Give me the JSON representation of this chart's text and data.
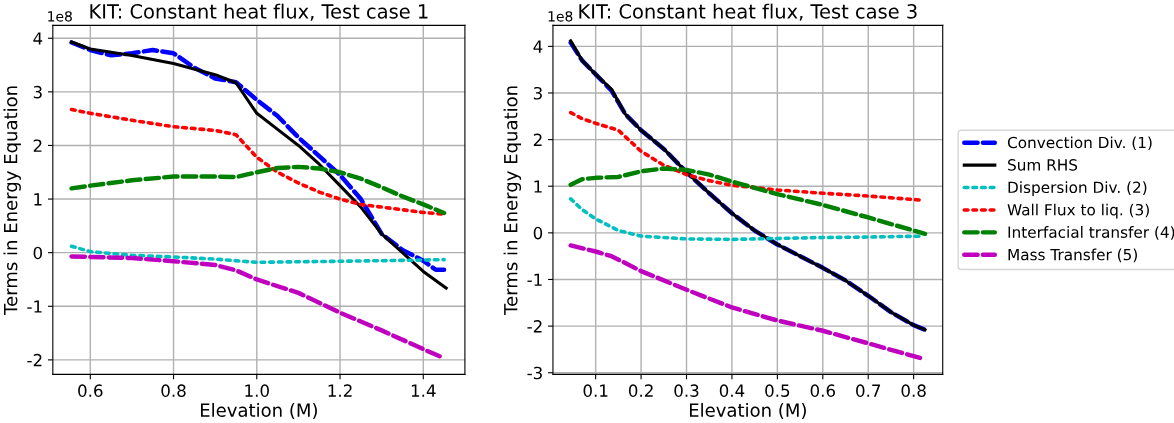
{
  "chart_data": [
    {
      "type": "line",
      "title": "KIT: Constant heat flux, Test case 1",
      "xlabel": "Elevation (M)",
      "ylabel": "Terms in Energy Equation",
      "annotations": [
        "1e8"
      ],
      "xlim": [
        0.51,
        1.5
      ],
      "xticks": [
        {
          "value": 0.6,
          "label": "0.6"
        },
        {
          "value": 0.8,
          "label": "0.8"
        },
        {
          "value": 1.0,
          "label": "1.0"
        },
        {
          "value": 1.2,
          "label": "1.2"
        },
        {
          "value": 1.4,
          "label": "1.4"
        }
      ],
      "ylim": [
        -2.27,
        4.24
      ],
      "yticks": [
        -2,
        -1,
        0,
        1,
        2,
        3,
        4
      ],
      "grid": true,
      "series": [
        {
          "color": "#0000ff",
          "line_style": "dashed",
          "x": [
            0.555,
            0.6,
            0.65,
            0.7,
            0.75,
            0.8,
            0.85,
            0.9,
            0.95,
            1.0,
            1.05,
            1.1,
            1.15,
            1.2,
            1.25,
            1.3,
            1.35,
            1.4,
            1.43,
            1.45
          ],
          "values": [
            3.92,
            3.78,
            3.68,
            3.72,
            3.78,
            3.72,
            3.45,
            3.25,
            3.18,
            2.85,
            2.55,
            2.15,
            1.8,
            1.45,
            1.0,
            0.35,
            0.05,
            -0.15,
            -0.32,
            -0.32
          ]
        },
        {
          "color": "#000000",
          "line_style": "solid",
          "x": [
            0.555,
            0.6,
            0.7,
            0.8,
            0.9,
            0.95,
            1.0,
            1.05,
            1.1,
            1.15,
            1.2,
            1.25,
            1.3,
            1.35,
            1.4,
            1.455
          ],
          "values": [
            3.93,
            3.8,
            3.68,
            3.53,
            3.32,
            3.17,
            2.6,
            2.3,
            2.0,
            1.65,
            1.25,
            0.85,
            0.35,
            0.0,
            -0.35,
            -0.66
          ]
        },
        {
          "color": "#00bfbf",
          "line_style": "dotted",
          "x": [
            0.555,
            0.6,
            0.7,
            0.8,
            0.9,
            1.0,
            1.1,
            1.2,
            1.3,
            1.45
          ],
          "values": [
            0.12,
            0.02,
            -0.05,
            -0.08,
            -0.12,
            -0.18,
            -0.17,
            -0.16,
            -0.15,
            -0.13
          ]
        },
        {
          "color": "#ff0000",
          "line_style": "dotted",
          "x": [
            0.555,
            0.6,
            0.7,
            0.8,
            0.9,
            0.95,
            1.0,
            1.05,
            1.1,
            1.15,
            1.2,
            1.25,
            1.3,
            1.35,
            1.4,
            1.45
          ],
          "values": [
            2.67,
            2.6,
            2.47,
            2.35,
            2.28,
            2.2,
            1.78,
            1.5,
            1.3,
            1.13,
            1.0,
            0.9,
            0.85,
            0.8,
            0.75,
            0.72
          ]
        },
        {
          "color": "#008000",
          "line_style": "dashed",
          "x": [
            0.555,
            0.6,
            0.7,
            0.8,
            0.9,
            0.95,
            1.0,
            1.05,
            1.1,
            1.15,
            1.2,
            1.25,
            1.3,
            1.35,
            1.4,
            1.45
          ],
          "values": [
            1.2,
            1.25,
            1.35,
            1.42,
            1.42,
            1.41,
            1.5,
            1.58,
            1.6,
            1.57,
            1.5,
            1.38,
            1.22,
            1.05,
            0.9,
            0.74
          ]
        },
        {
          "color": "#bf00bf",
          "line_style": "dashed",
          "x": [
            0.555,
            0.6,
            0.7,
            0.8,
            0.9,
            0.95,
            1.0,
            1.1,
            1.2,
            1.3,
            1.4,
            1.45
          ],
          "values": [
            -0.07,
            -0.08,
            -0.1,
            -0.16,
            -0.23,
            -0.33,
            -0.5,
            -0.75,
            -1.12,
            -1.45,
            -1.8,
            -1.97
          ]
        }
      ]
    },
    {
      "type": "line",
      "title": "KIT: Constant heat flux, Test case 3",
      "xlabel": "Elevation (M)",
      "ylabel": "Terms in Energy Equation",
      "annotations": [
        "1e8"
      ],
      "xlim": [
        0.006,
        0.864
      ],
      "xticks": [
        0.1,
        0.2,
        0.3,
        0.4,
        0.5,
        0.6,
        0.7,
        0.8
      ],
      "ylim": [
        -3.035,
        4.45
      ],
      "yticks": [
        -3,
        -2,
        -1,
        0,
        1,
        2,
        3,
        4
      ],
      "grid": true,
      "legend": "right",
      "series": [
        {
          "name": "Convection Div. (1)",
          "color": "#0000ff",
          "line_style": "dashed",
          "x": [
            0.045,
            0.07,
            0.1,
            0.135,
            0.165,
            0.2,
            0.25,
            0.3,
            0.35,
            0.4,
            0.45,
            0.5,
            0.55,
            0.6,
            0.65,
            0.7,
            0.75,
            0.8,
            0.825
          ],
          "values": [
            4.08,
            3.7,
            3.4,
            3.05,
            2.55,
            2.2,
            1.8,
            1.3,
            0.85,
            0.42,
            0.05,
            -0.25,
            -0.5,
            -0.75,
            -1.02,
            -1.35,
            -1.7,
            -1.98,
            -2.08
          ]
        },
        {
          "name": "Sum RHS",
          "color": "#000000",
          "line_style": "solid",
          "x": [
            0.045,
            0.07,
            0.1,
            0.135,
            0.165,
            0.2,
            0.25,
            0.3,
            0.35,
            0.4,
            0.45,
            0.5,
            0.55,
            0.6,
            0.65,
            0.7,
            0.75,
            0.8,
            0.825
          ],
          "values": [
            4.12,
            3.7,
            3.4,
            3.08,
            2.55,
            2.2,
            1.8,
            1.3,
            0.85,
            0.42,
            0.05,
            -0.25,
            -0.5,
            -0.75,
            -1.02,
            -1.35,
            -1.7,
            -1.98,
            -2.08
          ]
        },
        {
          "name": "Dispersion Div. (2)",
          "color": "#00bfbf",
          "line_style": "dotted",
          "x": [
            0.045,
            0.07,
            0.1,
            0.15,
            0.2,
            0.3,
            0.4,
            0.5,
            0.6,
            0.7,
            0.82
          ],
          "values": [
            0.73,
            0.5,
            0.3,
            0.05,
            -0.07,
            -0.13,
            -0.14,
            -0.12,
            -0.1,
            -0.09,
            -0.07
          ]
        },
        {
          "name": "Wall Flux to liq. (3)",
          "color": "#ff0000",
          "line_style": "dotted",
          "x": [
            0.045,
            0.07,
            0.1,
            0.15,
            0.2,
            0.25,
            0.3,
            0.35,
            0.4,
            0.5,
            0.6,
            0.7,
            0.82
          ],
          "values": [
            2.58,
            2.45,
            2.35,
            2.2,
            1.75,
            1.45,
            1.25,
            1.12,
            1.02,
            0.92,
            0.85,
            0.79,
            0.7
          ]
        },
        {
          "name": "Interfacial transfer (4)",
          "color": "#008000",
          "line_style": "dashed",
          "x": [
            0.045,
            0.07,
            0.1,
            0.15,
            0.2,
            0.25,
            0.3,
            0.35,
            0.4,
            0.5,
            0.6,
            0.7,
            0.8,
            0.825
          ],
          "values": [
            1.03,
            1.15,
            1.18,
            1.2,
            1.32,
            1.38,
            1.35,
            1.25,
            1.1,
            0.83,
            0.6,
            0.33,
            0.05,
            -0.02
          ]
        },
        {
          "name": "Mass Transfer (5)",
          "color": "#bf00bf",
          "line_style": "dashed",
          "x": [
            0.045,
            0.1,
            0.135,
            0.2,
            0.3,
            0.4,
            0.5,
            0.6,
            0.7,
            0.82
          ],
          "values": [
            -0.27,
            -0.4,
            -0.5,
            -0.82,
            -1.22,
            -1.6,
            -1.88,
            -2.1,
            -2.37,
            -2.7
          ]
        }
      ]
    }
  ]
}
